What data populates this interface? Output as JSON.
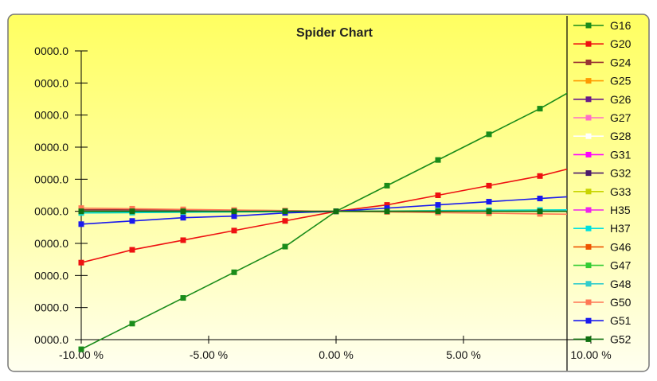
{
  "chart_data": {
    "type": "line",
    "title": "Spider Chart",
    "xlabel": "",
    "ylabel": "",
    "x_tick_labels": [
      "-10.00 %",
      "-5.00 %",
      "0.00 %",
      "5.00 %",
      "10.00 %"
    ],
    "y_tick_labels": [
      "0000.0",
      "0000.0",
      "0000.0",
      "0000.0",
      "0000.0",
      "0000.0",
      "0000.0",
      "0000.0",
      "0000.0",
      "0000.0"
    ],
    "x": [
      -10,
      -8,
      -6,
      -4,
      -2,
      0,
      2,
      4,
      6,
      8,
      10
    ],
    "xlim": [
      -10,
      10
    ],
    "ylim": [
      0,
      9
    ],
    "grid": false,
    "legend_position": "right",
    "background": "yellow gradient",
    "series": [
      {
        "name": "G16",
        "color": "#1a8c1a",
        "values": [
          -0.3,
          0.5,
          1.3,
          2.1,
          2.9,
          4.0,
          4.8,
          5.6,
          6.4,
          7.2,
          8.1
        ]
      },
      {
        "name": "G20",
        "color": "#ee1111",
        "values": [
          2.4,
          2.8,
          3.1,
          3.4,
          3.7,
          4.0,
          4.2,
          4.5,
          4.8,
          5.1,
          5.5
        ]
      },
      {
        "name": "G24",
        "color": "#993333",
        "values": [
          4.05,
          4.05,
          4.04,
          4.03,
          4.02,
          4.0,
          4.0,
          4.0,
          4.0,
          4.0,
          4.0
        ]
      },
      {
        "name": "G25",
        "color": "#ff9900",
        "values": [
          4.0,
          4.0,
          4.0,
          4.0,
          4.0,
          4.0,
          4.0,
          4.0,
          4.0,
          4.0,
          4.0
        ]
      },
      {
        "name": "G26",
        "color": "#6a1a8a",
        "values": [
          4.0,
          4.0,
          4.0,
          4.0,
          4.0,
          4.0,
          4.0,
          4.0,
          4.0,
          4.0,
          4.0
        ]
      },
      {
        "name": "G27",
        "color": "#ff6ec7",
        "values": [
          4.0,
          4.0,
          4.0,
          4.0,
          4.0,
          4.0,
          4.0,
          4.0,
          4.0,
          4.0,
          4.0
        ]
      },
      {
        "name": "G28",
        "color": "#ffffff",
        "values": [
          4.0,
          4.0,
          4.0,
          4.0,
          4.0,
          4.0,
          4.0,
          4.0,
          4.0,
          4.0,
          4.0
        ]
      },
      {
        "name": "G31",
        "color": "#ff00ff",
        "values": [
          4.0,
          4.0,
          4.0,
          4.0,
          4.0,
          4.0,
          4.0,
          4.0,
          4.0,
          4.0,
          4.0
        ]
      },
      {
        "name": "G32",
        "color": "#4b1a6b",
        "values": [
          4.0,
          4.0,
          4.0,
          4.0,
          4.0,
          4.0,
          4.0,
          4.0,
          4.0,
          4.0,
          4.0
        ]
      },
      {
        "name": "G33",
        "color": "#c8d400",
        "values": [
          3.95,
          3.96,
          3.97,
          3.98,
          3.99,
          4.0,
          4.01,
          4.02,
          4.03,
          4.04,
          4.05
        ]
      },
      {
        "name": "H35",
        "color": "#ee22ee",
        "values": [
          4.0,
          4.0,
          4.0,
          4.0,
          4.0,
          4.0,
          4.0,
          4.0,
          4.0,
          4.0,
          4.0
        ]
      },
      {
        "name": "H37",
        "color": "#00e0e0",
        "values": [
          3.95,
          3.96,
          3.97,
          3.98,
          3.99,
          4.0,
          4.01,
          4.02,
          4.03,
          4.04,
          4.05
        ]
      },
      {
        "name": "G46",
        "color": "#ee5500",
        "values": [
          4.0,
          4.0,
          4.0,
          4.0,
          4.0,
          4.0,
          4.0,
          4.0,
          4.0,
          4.0,
          4.0
        ]
      },
      {
        "name": "G47",
        "color": "#33cc33",
        "values": [
          4.0,
          4.0,
          4.0,
          4.0,
          4.0,
          4.0,
          4.0,
          4.0,
          4.0,
          4.0,
          4.0
        ]
      },
      {
        "name": "G48",
        "color": "#33cccc",
        "values": [
          4.0,
          4.0,
          4.0,
          4.0,
          4.0,
          4.0,
          4.0,
          4.0,
          4.0,
          4.0,
          4.0
        ]
      },
      {
        "name": "G50",
        "color": "#ff7755",
        "values": [
          4.1,
          4.08,
          4.06,
          4.04,
          4.02,
          4.0,
          3.98,
          3.96,
          3.94,
          3.92,
          3.9
        ]
      },
      {
        "name": "G51",
        "color": "#1a1aee",
        "values": [
          3.6,
          3.7,
          3.8,
          3.85,
          3.95,
          4.0,
          4.1,
          4.2,
          4.3,
          4.4,
          4.5
        ]
      },
      {
        "name": "G52",
        "color": "#107010",
        "values": [
          4.0,
          4.0,
          4.0,
          4.0,
          4.0,
          4.0,
          4.0,
          4.0,
          4.0,
          4.0,
          4.0
        ]
      }
    ]
  }
}
